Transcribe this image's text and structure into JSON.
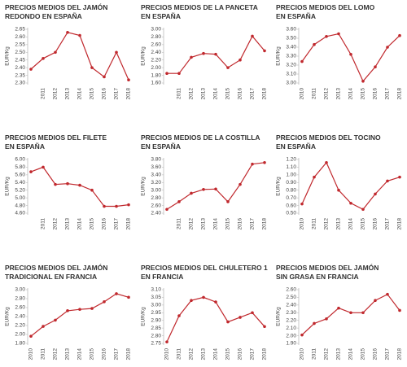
{
  "chart_data": [
    {
      "type": "line",
      "title": [
        "PRECIOS MEDIOS DEL JAMÓN",
        "REDONDO EN ESPAÑA"
      ],
      "ylabel": "EUR/Kg",
      "color": "#c0282d",
      "categories": [
        null,
        "2011",
        "2012",
        "2013",
        "2014",
        "2015",
        "2016",
        "2017",
        "2018"
      ],
      "values": [
        2.39,
        2.46,
        2.5,
        2.63,
        2.61,
        2.4,
        2.34,
        2.5,
        2.32
      ],
      "ylim": [
        2.3,
        2.65
      ],
      "yticks": [
        {
          "value": 2.3,
          "label": "2.30"
        },
        2.35,
        {
          "value": 2.4,
          "label": "2.40"
        },
        2.45,
        {
          "value": 2.5,
          "label": "2.50"
        },
        2.55,
        {
          "value": 2.6,
          "label": "2.60"
        },
        2.65
      ]
    },
    {
      "type": "line",
      "title": [
        "PRECIOS MEDIOS DE LA PANCETA",
        "EN ESPAÑA"
      ],
      "ylabel": "EUR/Kg",
      "color": "#c0282d",
      "categories": [
        null,
        "2011",
        "2012",
        "2013",
        "2014",
        "2015",
        "2016",
        "2017",
        "2018"
      ],
      "values": [
        1.85,
        1.85,
        2.27,
        2.37,
        2.35,
        2.0,
        2.2,
        2.82,
        2.44
      ],
      "ylim": [
        1.6,
        3.0
      ],
      "yticks": [
        {
          "value": 1.6,
          "label": "1.60"
        },
        {
          "value": 1.8,
          "label": "1.80"
        },
        {
          "value": 2.0,
          "label": "2.00"
        },
        {
          "value": 2.2,
          "label": "2.20"
        },
        {
          "value": 2.4,
          "label": "2.40"
        },
        {
          "value": 2.6,
          "label": "2.60"
        },
        {
          "value": 2.8,
          "label": "2.80"
        },
        {
          "value": 3.0,
          "label": "3.00"
        }
      ]
    },
    {
      "type": "line",
      "title": [
        "PRECIOS MEDIOS DEL LOMO",
        "EN ESPAÑA"
      ],
      "ylabel": "EUR/Kg",
      "color": "#c0282d",
      "categories": [
        "2010",
        "2011",
        "2012",
        "2013",
        "2014",
        "2015",
        "2016",
        "2017",
        "2018"
      ],
      "values": [
        3.24,
        3.43,
        3.52,
        3.55,
        3.32,
        3.02,
        3.18,
        3.4,
        3.53
      ],
      "ylim": [
        3.0,
        3.6
      ],
      "yticks": [
        {
          "value": 3.0,
          "label": "3.00"
        },
        {
          "value": 3.1,
          "label": "3.10"
        },
        {
          "value": 3.2,
          "label": "3.20"
        },
        {
          "value": 3.3,
          "label": "3.30"
        },
        {
          "value": 3.4,
          "label": "3.40"
        },
        {
          "value": 3.5,
          "label": "3.50"
        },
        {
          "value": 3.6,
          "label": "3.60"
        }
      ]
    },
    {
      "type": "line",
      "title": [
        "PRECIOS MEDIOS DEL FILETE",
        "EN ESPAÑA"
      ],
      "ylabel": "EUR/Kg",
      "color": "#c0282d",
      "categories": [
        null,
        "2011",
        "2012",
        "2013",
        "2014",
        "2015",
        "2016",
        "2017",
        "2018"
      ],
      "values": [
        5.68,
        5.8,
        5.35,
        5.37,
        5.33,
        5.2,
        4.78,
        4.78,
        4.82
      ],
      "ylim": [
        4.6,
        6.0
      ],
      "yticks": [
        {
          "value": 4.6,
          "label": "4.60"
        },
        {
          "value": 4.8,
          "label": "4.80"
        },
        {
          "value": 5.0,
          "label": "5.00"
        },
        {
          "value": 5.2,
          "label": "5.20"
        },
        {
          "value": 5.4,
          "label": "5.40"
        },
        {
          "value": 5.6,
          "label": "5.60"
        },
        {
          "value": 5.8,
          "label": "5.80"
        },
        {
          "value": 6.0,
          "label": "6.00"
        }
      ]
    },
    {
      "type": "line",
      "title": [
        "PRECIOS MEDIOS DE LA COSTILLA",
        "EN ESPAÑA"
      ],
      "ylabel": "EUR/Kg",
      "color": "#c0282d",
      "categories": [
        null,
        "2011",
        "2012",
        "2013",
        "2014",
        "2015",
        "2016",
        "2017",
        "2018"
      ],
      "values": [
        2.5,
        2.7,
        2.92,
        3.02,
        3.03,
        2.7,
        3.15,
        3.68,
        3.72
      ],
      "ylim": [
        2.4,
        3.8
      ],
      "yticks": [
        {
          "value": 2.4,
          "label": "2.40"
        },
        {
          "value": 2.6,
          "label": "2.60"
        },
        {
          "value": 2.8,
          "label": "2.80"
        },
        {
          "value": 3.0,
          "label": "3.00"
        },
        {
          "value": 3.2,
          "label": "3.20"
        },
        {
          "value": 3.4,
          "label": "3.40"
        },
        {
          "value": 3.6,
          "label": "3.60"
        },
        {
          "value": 3.8,
          "label": "3.80"
        }
      ]
    },
    {
      "type": "line",
      "title": [
        "PRECIOS MEDIOS DEL TOCINO",
        "EN ESPAÑA"
      ],
      "ylabel": "EUR/Kg",
      "color": "#c0282d",
      "categories": [
        "2010",
        "2011",
        "2012",
        "2013",
        "2014",
        "2015",
        "2016",
        "2017",
        "2018"
      ],
      "values": [
        0.62,
        0.97,
        1.16,
        0.8,
        0.63,
        0.55,
        0.75,
        0.92,
        0.97
      ],
      "ylim": [
        0.5,
        1.2
      ],
      "yticks": [
        {
          "value": 0.5,
          "label": "0.50"
        },
        {
          "value": 0.6,
          "label": "0.60"
        },
        {
          "value": 0.7,
          "label": "0.70"
        },
        {
          "value": 0.8,
          "label": "0.80"
        },
        {
          "value": 0.9,
          "label": "0.90"
        },
        {
          "value": 1.0,
          "label": "1.00"
        },
        {
          "value": 1.1,
          "label": "1.10"
        },
        {
          "value": 1.2,
          "label": "1.20"
        }
      ]
    },
    {
      "type": "line",
      "title": [
        "PRECIOS MEDIOS DEL JAMÓN",
        "TRADICIONAL EN FRANCIA"
      ],
      "ylabel": "EUR/Kg",
      "color": "#c0282d",
      "categories": [
        "2010",
        "2011",
        "2012",
        "2013",
        "2014",
        "2015",
        "2016",
        "2017",
        "2018"
      ],
      "values": [
        1.96,
        2.18,
        2.32,
        2.53,
        2.56,
        2.58,
        2.73,
        2.91,
        2.83
      ],
      "ylim": [
        1.8,
        3.0
      ],
      "yticks": [
        {
          "value": 1.8,
          "label": "1.80"
        },
        {
          "value": 2.0,
          "label": "2.00"
        },
        {
          "value": 2.2,
          "label": "2.20"
        },
        {
          "value": 2.4,
          "label": "2.40"
        },
        {
          "value": 2.6,
          "label": "2.60"
        },
        {
          "value": 2.8,
          "label": "2.80"
        },
        {
          "value": 3.0,
          "label": "3.00"
        }
      ]
    },
    {
      "type": "line",
      "title": [
        "PRECIOS MEDIOS DEL CHULETERO 1",
        "EN FRANCIA"
      ],
      "ylabel": "EUR/Kg",
      "color": "#c0282d",
      "categories": [
        "2010",
        "2011",
        "2012",
        "2013",
        "2014",
        "2015",
        "2016",
        "2017",
        "2018"
      ],
      "values": [
        2.76,
        2.93,
        3.03,
        3.05,
        3.02,
        2.89,
        2.92,
        2.95,
        2.86
      ],
      "ylim": [
        2.75,
        3.1
      ],
      "yticks": [
        2.75,
        {
          "value": 2.8,
          "label": "2.80"
        },
        2.85,
        {
          "value": 2.9,
          "label": "2.90"
        },
        2.95,
        {
          "value": 3.0,
          "label": "3.00"
        },
        3.05,
        {
          "value": 3.1,
          "label": "3.10"
        }
      ]
    },
    {
      "type": "line",
      "title": [
        "PRECIOS MEDIOS DEL JAMÓN",
        "SIN GRASA EN FRANCIA"
      ],
      "ylabel": "EUR/Kg",
      "color": "#c0282d",
      "categories": [
        "2010",
        "2011",
        "2012",
        "2013",
        "2014",
        "2015",
        "2016",
        "2017",
        "2018"
      ],
      "values": [
        2.01,
        2.16,
        2.22,
        2.36,
        2.3,
        2.3,
        2.46,
        2.54,
        2.33
      ],
      "ylim": [
        1.9,
        2.6
      ],
      "yticks": [
        {
          "value": 1.9,
          "label": "1.90"
        },
        {
          "value": 2.0,
          "label": "2.00"
        },
        {
          "value": 2.1,
          "label": "2.10"
        },
        {
          "value": 2.2,
          "label": "2.20"
        },
        {
          "value": 2.3,
          "label": "2.30"
        },
        {
          "value": 2.4,
          "label": "2.40"
        },
        {
          "value": 2.5,
          "label": "2.50"
        },
        {
          "value": 2.6,
          "label": "2.60"
        }
      ]
    }
  ]
}
